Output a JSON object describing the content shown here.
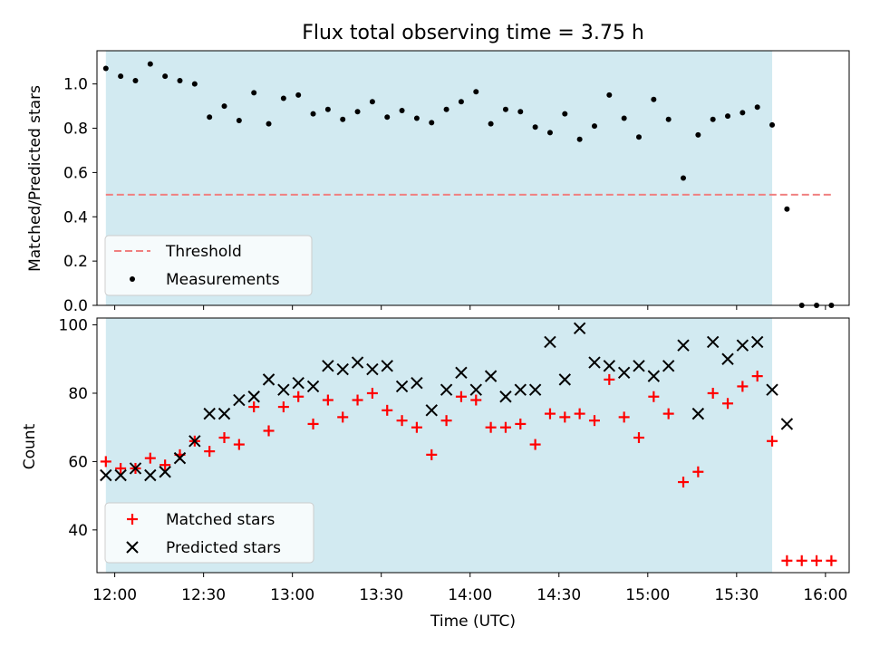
{
  "chart_data": [
    {
      "type": "scatter",
      "title": "Flux total observing time = 3.75 h",
      "xlabel": "",
      "ylabel": "Matched/Predicted stars",
      "xlim": [
        "11:54",
        "16:08"
      ],
      "ylim": [
        0,
        1.15
      ],
      "yticks": [
        "0.0",
        "0.2",
        "0.4",
        "0.6",
        "0.8",
        "1.0"
      ],
      "shaded_interval": [
        "11:57",
        "15:42"
      ],
      "shaded_color": "#add8e6",
      "threshold": {
        "name": "Threshold",
        "y": 0.5,
        "x_range": [
          "11:57",
          "16:02"
        ],
        "color": "#f08080"
      },
      "legend": [
        "Threshold",
        "Measurements"
      ],
      "legend_position": "lower left",
      "series": [
        {
          "name": "Measurements",
          "color": "#000000",
          "marker": "dot",
          "points": [
            [
              "11:57",
              1.07
            ],
            [
              "12:02",
              1.035
            ],
            [
              "12:07",
              1.015
            ],
            [
              "12:12",
              1.09
            ],
            [
              "12:17",
              1.035
            ],
            [
              "12:22",
              1.015
            ],
            [
              "12:27",
              1.0
            ],
            [
              "12:32",
              0.85
            ],
            [
              "12:37",
              0.9
            ],
            [
              "12:42",
              0.835
            ],
            [
              "12:47",
              0.96
            ],
            [
              "12:52",
              0.82
            ],
            [
              "12:57",
              0.935
            ],
            [
              "13:02",
              0.95
            ],
            [
              "13:07",
              0.865
            ],
            [
              "13:12",
              0.885
            ],
            [
              "13:17",
              0.84
            ],
            [
              "13:22",
              0.875
            ],
            [
              "13:27",
              0.92
            ],
            [
              "13:32",
              0.85
            ],
            [
              "13:37",
              0.88
            ],
            [
              "13:42",
              0.845
            ],
            [
              "13:47",
              0.825
            ],
            [
              "13:52",
              0.885
            ],
            [
              "13:57",
              0.92
            ],
            [
              "14:02",
              0.965
            ],
            [
              "14:07",
              0.82
            ],
            [
              "14:12",
              0.885
            ],
            [
              "14:17",
              0.875
            ],
            [
              "14:22",
              0.805
            ],
            [
              "14:27",
              0.78
            ],
            [
              "14:32",
              0.865
            ],
            [
              "14:37",
              0.75
            ],
            [
              "14:42",
              0.81
            ],
            [
              "14:47",
              0.95
            ],
            [
              "14:52",
              0.845
            ],
            [
              "14:57",
              0.76
            ],
            [
              "15:02",
              0.93
            ],
            [
              "15:07",
              0.84
            ],
            [
              "15:12",
              0.575
            ],
            [
              "15:17",
              0.77
            ],
            [
              "15:22",
              0.84
            ],
            [
              "15:27",
              0.855
            ],
            [
              "15:32",
              0.87
            ],
            [
              "15:37",
              0.895
            ],
            [
              "15:42",
              0.815
            ],
            [
              "15:47",
              0.435
            ],
            [
              "15:52",
              0.0
            ],
            [
              "15:57",
              0.0
            ],
            [
              "16:02",
              0.0
            ]
          ]
        }
      ]
    },
    {
      "type": "scatter",
      "title": "",
      "xlabel": "Time (UTC)",
      "ylabel": "Count",
      "xlim": [
        "11:54",
        "16:08"
      ],
      "ylim": [
        27.5,
        102
      ],
      "yticks": [
        "40",
        "60",
        "80",
        "100"
      ],
      "xticks": [
        "12:00",
        "12:30",
        "13:00",
        "13:30",
        "14:00",
        "14:30",
        "15:00",
        "15:30",
        "16:00"
      ],
      "shaded_interval": [
        "11:57",
        "15:42"
      ],
      "shaded_color": "#add8e6",
      "legend": [
        "Matched stars",
        "Predicted stars"
      ],
      "legend_position": "lower left",
      "series": [
        {
          "name": "Matched stars",
          "color": "#ff0000",
          "marker": "plus",
          "points": [
            [
              "11:57",
              60
            ],
            [
              "12:02",
              58
            ],
            [
              "12:07",
              58
            ],
            [
              "12:12",
              61
            ],
            [
              "12:17",
              59
            ],
            [
              "12:22",
              62
            ],
            [
              "12:27",
              66
            ],
            [
              "12:32",
              63
            ],
            [
              "12:37",
              67
            ],
            [
              "12:42",
              65
            ],
            [
              "12:47",
              76
            ],
            [
              "12:52",
              69
            ],
            [
              "12:57",
              76
            ],
            [
              "13:02",
              79
            ],
            [
              "13:07",
              71
            ],
            [
              "13:12",
              78
            ],
            [
              "13:17",
              73
            ],
            [
              "13:22",
              78
            ],
            [
              "13:27",
              80
            ],
            [
              "13:32",
              75
            ],
            [
              "13:37",
              72
            ],
            [
              "13:42",
              70
            ],
            [
              "13:47",
              62
            ],
            [
              "13:52",
              72
            ],
            [
              "13:57",
              79
            ],
            [
              "14:02",
              78
            ],
            [
              "14:07",
              70
            ],
            [
              "14:12",
              70
            ],
            [
              "14:17",
              71
            ],
            [
              "14:22",
              65
            ],
            [
              "14:27",
              74
            ],
            [
              "14:32",
              73
            ],
            [
              "14:37",
              74
            ],
            [
              "14:42",
              72
            ],
            [
              "14:47",
              84
            ],
            [
              "14:52",
              73
            ],
            [
              "14:57",
              67
            ],
            [
              "15:02",
              79
            ],
            [
              "15:07",
              74
            ],
            [
              "15:12",
              54
            ],
            [
              "15:17",
              57
            ],
            [
              "15:22",
              80
            ],
            [
              "15:27",
              77
            ],
            [
              "15:32",
              82
            ],
            [
              "15:37",
              85
            ],
            [
              "15:42",
              66
            ],
            [
              "15:47",
              31
            ],
            [
              "15:52",
              31
            ],
            [
              "15:57",
              31
            ],
            [
              "16:02",
              31
            ]
          ]
        },
        {
          "name": "Predicted stars",
          "color": "#000000",
          "marker": "x",
          "points": [
            [
              "11:57",
              56
            ],
            [
              "12:02",
              56
            ],
            [
              "12:07",
              58
            ],
            [
              "12:12",
              56
            ],
            [
              "12:17",
              57
            ],
            [
              "12:22",
              61
            ],
            [
              "12:27",
              66
            ],
            [
              "12:32",
              74
            ],
            [
              "12:37",
              74
            ],
            [
              "12:42",
              78
            ],
            [
              "12:47",
              79
            ],
            [
              "12:52",
              84
            ],
            [
              "12:57",
              81
            ],
            [
              "13:02",
              83
            ],
            [
              "13:07",
              82
            ],
            [
              "13:12",
              88
            ],
            [
              "13:17",
              87
            ],
            [
              "13:22",
              89
            ],
            [
              "13:27",
              87
            ],
            [
              "13:32",
              88
            ],
            [
              "13:37",
              82
            ],
            [
              "13:42",
              83
            ],
            [
              "13:47",
              75
            ],
            [
              "13:52",
              81
            ],
            [
              "13:57",
              86
            ],
            [
              "14:02",
              81
            ],
            [
              "14:07",
              85
            ],
            [
              "14:12",
              79
            ],
            [
              "14:17",
              81
            ],
            [
              "14:22",
              81
            ],
            [
              "14:27",
              95
            ],
            [
              "14:32",
              84
            ],
            [
              "14:37",
              99
            ],
            [
              "14:42",
              89
            ],
            [
              "14:47",
              88
            ],
            [
              "14:52",
              86
            ],
            [
              "14:57",
              88
            ],
            [
              "15:02",
              85
            ],
            [
              "15:07",
              88
            ],
            [
              "15:12",
              94
            ],
            [
              "15:17",
              74
            ],
            [
              "15:22",
              95
            ],
            [
              "15:27",
              90
            ],
            [
              "15:32",
              94
            ],
            [
              "15:37",
              95
            ],
            [
              "15:42",
              81
            ],
            [
              "15:47",
              71
            ]
          ]
        }
      ]
    }
  ]
}
